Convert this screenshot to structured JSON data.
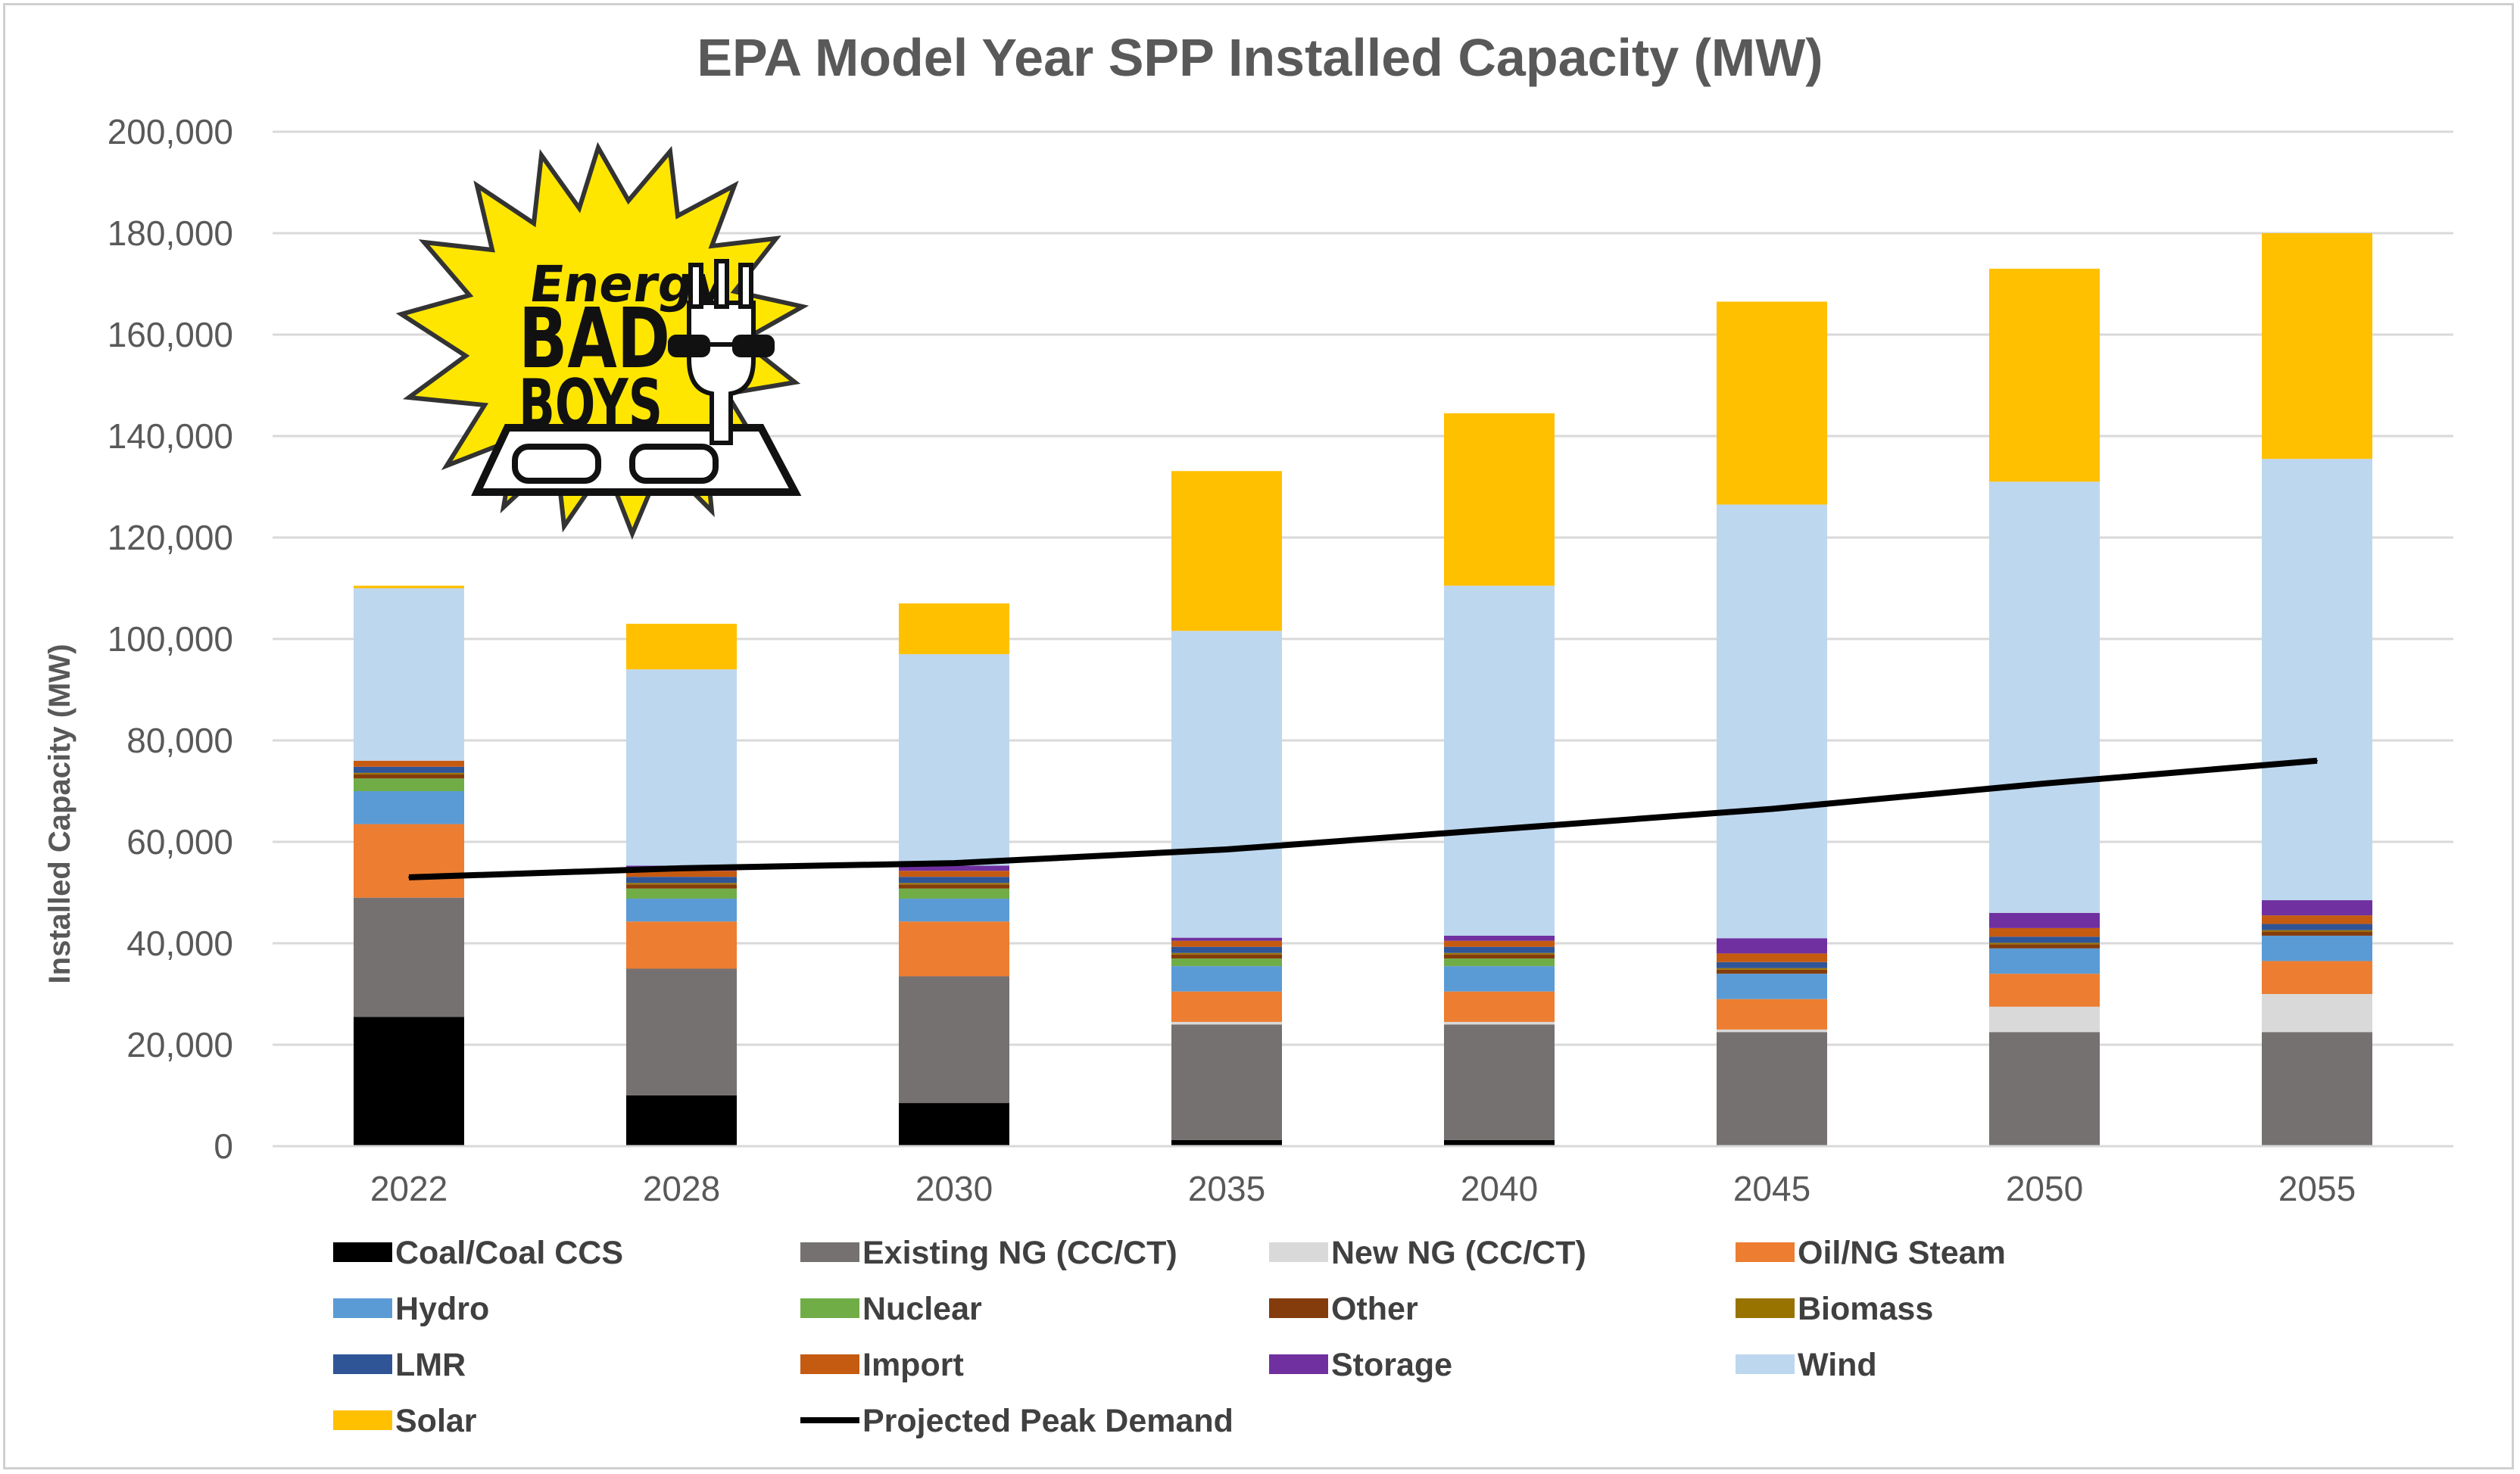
{
  "chart_data": {
    "type": "bar",
    "stacked": true,
    "title": "EPA Model Year SPP Installed Capacity (MW)",
    "xlabel": "",
    "ylabel": "Installed Capacity (MW)",
    "ylim": [
      0,
      200000
    ],
    "yticks": [
      0,
      20000,
      40000,
      60000,
      80000,
      100000,
      120000,
      140000,
      160000,
      180000,
      200000
    ],
    "ytick_labels": [
      "0",
      "20,000",
      "40,000",
      "60,000",
      "80,000",
      "100,000",
      "120,000",
      "140,000",
      "160,000",
      "180,000",
      "200,000"
    ],
    "grid": true,
    "legend_position": "bottom",
    "categories": [
      "2022",
      "2028",
      "2030",
      "2035",
      "2040",
      "2045",
      "2050",
      "2055"
    ],
    "series": [
      {
        "name": "Coal/Coal CCS",
        "color": "#000000",
        "values": [
          25500,
          10000,
          8500,
          1200,
          1200,
          0,
          0,
          0
        ]
      },
      {
        "name": "Existing NG (CC/CT)",
        "color": "#767171",
        "values": [
          23500,
          25000,
          25000,
          22800,
          22800,
          22500,
          22500,
          22500
        ]
      },
      {
        "name": "New NG (CC/CT)",
        "color": "#d9d9d9",
        "values": [
          0,
          0,
          0,
          500,
          500,
          500,
          5000,
          7500
        ]
      },
      {
        "name": "Oil/NG Steam",
        "color": "#ed7d31",
        "values": [
          14500,
          9300,
          10800,
          6000,
          6000,
          6000,
          6500,
          6500
        ]
      },
      {
        "name": "Hydro",
        "color": "#5b9bd5",
        "values": [
          6500,
          4500,
          4500,
          5000,
          5000,
          5000,
          5000,
          5000
        ]
      },
      {
        "name": "Nuclear",
        "color": "#70ad47",
        "values": [
          2500,
          2000,
          2000,
          1500,
          1500,
          0,
          0,
          0
        ]
      },
      {
        "name": "Other",
        "color": "#843c0c",
        "values": [
          800,
          800,
          800,
          800,
          800,
          800,
          800,
          800
        ]
      },
      {
        "name": "Biomass",
        "color": "#997300",
        "values": [
          300,
          300,
          300,
          300,
          300,
          300,
          300,
          300
        ]
      },
      {
        "name": "LMR",
        "color": "#2f5597",
        "values": [
          1200,
          1200,
          1200,
          1200,
          1200,
          1200,
          1200,
          1200
        ]
      },
      {
        "name": "Import",
        "color": "#c55a11",
        "values": [
          1200,
          1200,
          1200,
          1200,
          1200,
          1700,
          1700,
          1700
        ]
      },
      {
        "name": "Storage",
        "color": "#7030a0",
        "values": [
          0,
          1000,
          1000,
          600,
          1000,
          3000,
          3000,
          3000
        ]
      },
      {
        "name": "Wind",
        "color": "#bdd7ee",
        "values": [
          34000,
          38700,
          41700,
          60500,
          69000,
          85500,
          85000,
          87000
        ]
      },
      {
        "name": "Solar",
        "color": "#ffc000",
        "values": [
          500,
          9000,
          10000,
          31500,
          34000,
          40000,
          42000,
          44500
        ]
      }
    ],
    "line_series": {
      "name": "Projected Peak Demand",
      "color": "#000000",
      "values": [
        53000,
        54800,
        55800,
        58500,
        62500,
        66500,
        71500,
        76000
      ]
    }
  },
  "logo": {
    "line1": "Energy",
    "line2": "BAD",
    "line3": "BOYS"
  }
}
